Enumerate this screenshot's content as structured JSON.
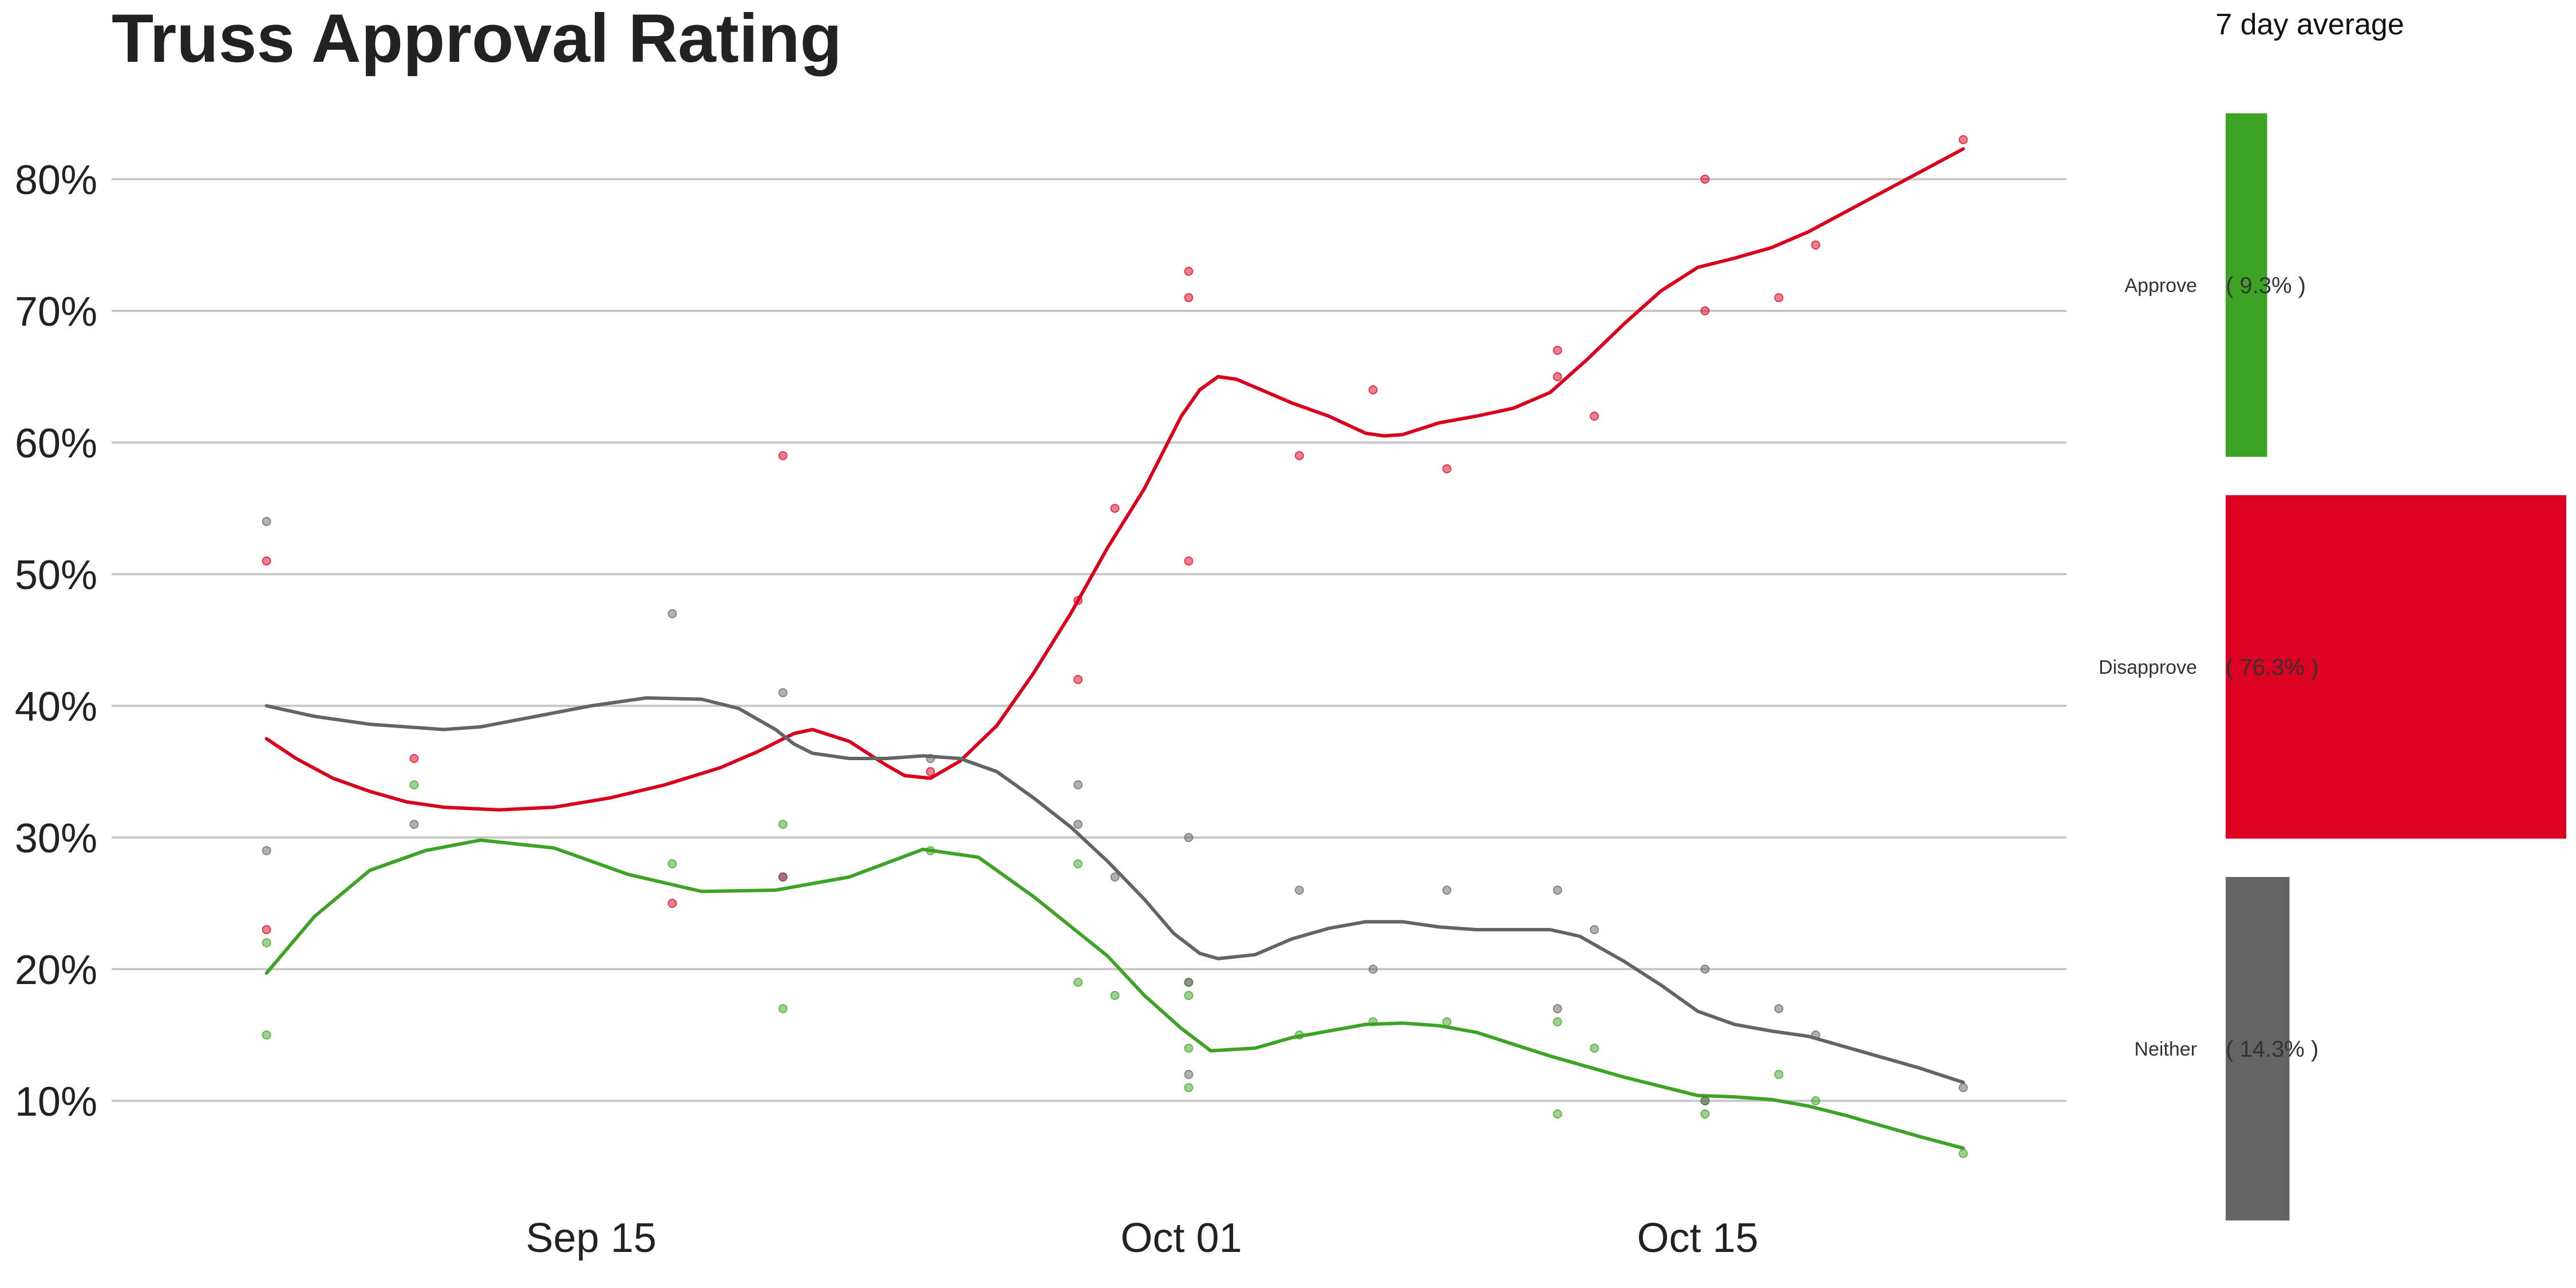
{
  "chart_data": {
    "type": "scatter",
    "title": "Truss Approval Rating",
    "ylim": [
      3,
      87
    ],
    "y_ticks": [
      10,
      20,
      30,
      40,
      50,
      60,
      70,
      80
    ],
    "y_tick_labels": [
      "10%",
      "20%",
      "30%",
      "40%",
      "50%",
      "60%",
      "70%",
      "80%"
    ],
    "x_ticks": [
      14,
      30,
      44
    ],
    "x_tick_labels": [
      "Sep 15",
      "Oct 01",
      "Oct 15"
    ],
    "xlim": [
      1,
      54
    ],
    "grid": "horizontal",
    "series": [
      {
        "name": "Approve",
        "color": "#3ca324",
        "points": [
          [
            5.2,
            22
          ],
          [
            5.2,
            15
          ],
          [
            9.2,
            34
          ],
          [
            16.2,
            28
          ],
          [
            19.2,
            31
          ],
          [
            19.2,
            17
          ],
          [
            23.2,
            29
          ],
          [
            27.2,
            28
          ],
          [
            27.2,
            19
          ],
          [
            28.2,
            18
          ],
          [
            30.2,
            19
          ],
          [
            30.2,
            18
          ],
          [
            30.2,
            14
          ],
          [
            30.2,
            11
          ],
          [
            33.2,
            15
          ],
          [
            35.2,
            16
          ],
          [
            37.2,
            16
          ],
          [
            40.2,
            16
          ],
          [
            40.2,
            9
          ],
          [
            41.2,
            14
          ],
          [
            44.2,
            10
          ],
          [
            44.2,
            9
          ],
          [
            46.2,
            12
          ],
          [
            47.2,
            10
          ],
          [
            51.2,
            6
          ]
        ],
        "trend": [
          [
            5.2,
            19.7
          ],
          [
            6.5,
            24
          ],
          [
            8,
            27.5
          ],
          [
            9.5,
            29
          ],
          [
            11,
            29.8
          ],
          [
            13,
            29.2
          ],
          [
            15,
            27.2
          ],
          [
            17,
            25.9
          ],
          [
            19,
            26
          ],
          [
            21,
            27
          ],
          [
            23,
            29.1
          ],
          [
            24.5,
            28.5
          ],
          [
            26,
            25.5
          ],
          [
            28,
            21
          ],
          [
            29,
            18
          ],
          [
            30,
            15.5
          ],
          [
            30.8,
            13.8
          ],
          [
            32,
            14
          ],
          [
            33,
            14.8
          ],
          [
            34,
            15.3
          ],
          [
            35,
            15.8
          ],
          [
            36,
            15.9
          ],
          [
            37,
            15.7
          ],
          [
            38,
            15.2
          ],
          [
            39,
            14.3
          ],
          [
            40,
            13.4
          ],
          [
            41,
            12.6
          ],
          [
            42,
            11.8
          ],
          [
            43,
            11.1
          ],
          [
            44,
            10.4
          ],
          [
            45,
            10.3
          ],
          [
            46,
            10.1
          ],
          [
            47,
            9.6
          ],
          [
            48,
            8.9
          ],
          [
            49,
            8.1
          ],
          [
            50,
            7.3
          ],
          [
            51.2,
            6.4
          ]
        ]
      },
      {
        "name": "Disapprove",
        "color": "#d9001c",
        "points": [
          [
            5.2,
            51
          ],
          [
            5.2,
            23
          ],
          [
            9.2,
            36
          ],
          [
            16.2,
            25
          ],
          [
            19.2,
            59
          ],
          [
            19.2,
            27
          ],
          [
            23.2,
            35
          ],
          [
            27.2,
            48
          ],
          [
            27.2,
            42
          ],
          [
            28.2,
            55
          ],
          [
            30.2,
            73
          ],
          [
            30.2,
            71
          ],
          [
            30.2,
            51
          ],
          [
            33.2,
            59
          ],
          [
            35.2,
            64
          ],
          [
            37.2,
            58
          ],
          [
            40.2,
            67
          ],
          [
            40.2,
            65
          ],
          [
            41.2,
            62
          ],
          [
            44.2,
            80
          ],
          [
            44.2,
            70
          ],
          [
            46.2,
            71
          ],
          [
            47.2,
            75
          ],
          [
            51.2,
            83
          ]
        ],
        "trend": [
          [
            5.2,
            37.5
          ],
          [
            6,
            36
          ],
          [
            7,
            34.5
          ],
          [
            8,
            33.5
          ],
          [
            9,
            32.7
          ],
          [
            10,
            32.3
          ],
          [
            11.5,
            32.1
          ],
          [
            13,
            32.3
          ],
          [
            14.5,
            33
          ],
          [
            16,
            34
          ],
          [
            17.5,
            35.3
          ],
          [
            18.5,
            36.5
          ],
          [
            19.5,
            37.9
          ],
          [
            20,
            38.2
          ],
          [
            21,
            37.3
          ],
          [
            22,
            35.5
          ],
          [
            22.5,
            34.7
          ],
          [
            23.2,
            34.5
          ],
          [
            24,
            35.8
          ],
          [
            25,
            38.5
          ],
          [
            26,
            42.5
          ],
          [
            27,
            47
          ],
          [
            28,
            52
          ],
          [
            29,
            56.5
          ],
          [
            30,
            62
          ],
          [
            30.5,
            64
          ],
          [
            31,
            65
          ],
          [
            31.5,
            64.8
          ],
          [
            32,
            64.2
          ],
          [
            33,
            63
          ],
          [
            34,
            62
          ],
          [
            35,
            60.7
          ],
          [
            35.5,
            60.5
          ],
          [
            36,
            60.6
          ],
          [
            37,
            61.5
          ],
          [
            38,
            62
          ],
          [
            39,
            62.6
          ],
          [
            40,
            63.8
          ],
          [
            41,
            66.3
          ],
          [
            42,
            69
          ],
          [
            43,
            71.5
          ],
          [
            43.5,
            72.4
          ],
          [
            44,
            73.3
          ],
          [
            45,
            74
          ],
          [
            46,
            74.8
          ],
          [
            47,
            76
          ],
          [
            48,
            77.5
          ],
          [
            49,
            79
          ],
          [
            50,
            80.5
          ],
          [
            51.2,
            82.3
          ]
        ]
      },
      {
        "name": "Neither",
        "color": "#646464",
        "points": [
          [
            5.2,
            54
          ],
          [
            5.2,
            29
          ],
          [
            9.2,
            31
          ],
          [
            16.2,
            47
          ],
          [
            19.2,
            41
          ],
          [
            19.2,
            27
          ],
          [
            23.2,
            36
          ],
          [
            27.2,
            34
          ],
          [
            27.2,
            31
          ],
          [
            28.2,
            27
          ],
          [
            30.2,
            30
          ],
          [
            30.2,
            19
          ],
          [
            30.2,
            12
          ],
          [
            33.2,
            26
          ],
          [
            35.2,
            20
          ],
          [
            37.2,
            26
          ],
          [
            40.2,
            26
          ],
          [
            40.2,
            17
          ],
          [
            41.2,
            23
          ],
          [
            44.2,
            20
          ],
          [
            44.2,
            10
          ],
          [
            46.2,
            17
          ],
          [
            47.2,
            15
          ],
          [
            51.2,
            11
          ]
        ],
        "trend": [
          [
            5.2,
            40
          ],
          [
            6.5,
            39.2
          ],
          [
            8,
            38.6
          ],
          [
            10,
            38.2
          ],
          [
            11,
            38.4
          ],
          [
            12.5,
            39.2
          ],
          [
            14,
            40
          ],
          [
            15.5,
            40.6
          ],
          [
            17,
            40.5
          ],
          [
            18,
            39.8
          ],
          [
            19,
            38.2
          ],
          [
            19.5,
            37.1
          ],
          [
            20,
            36.4
          ],
          [
            21,
            36
          ],
          [
            22,
            36
          ],
          [
            23,
            36.2
          ],
          [
            24,
            36
          ],
          [
            25,
            35
          ],
          [
            26,
            33
          ],
          [
            27,
            30.8
          ],
          [
            28,
            28.2
          ],
          [
            29,
            25.3
          ],
          [
            29.8,
            22.7
          ],
          [
            30.5,
            21.2
          ],
          [
            31,
            20.8
          ],
          [
            32,
            21.1
          ],
          [
            33,
            22.3
          ],
          [
            34,
            23.1
          ],
          [
            35,
            23.6
          ],
          [
            36,
            23.6
          ],
          [
            37,
            23.2
          ],
          [
            38,
            23
          ],
          [
            39,
            23
          ],
          [
            40,
            23
          ],
          [
            40.8,
            22.5
          ],
          [
            42,
            20.6
          ],
          [
            43,
            18.8
          ],
          [
            44,
            16.8
          ],
          [
            45,
            15.8
          ],
          [
            46,
            15.3
          ],
          [
            47,
            14.9
          ],
          [
            48,
            14.1
          ],
          [
            49,
            13.3
          ],
          [
            50,
            12.5
          ],
          [
            51.2,
            11.4
          ]
        ]
      }
    ]
  },
  "side_panel": {
    "title": "7 day average",
    "bars": [
      {
        "label": "Approve",
        "value": 9.3,
        "value_text": "( 9.3% )",
        "color": "#3ca324"
      },
      {
        "label": "Disapprove",
        "value": 76.3,
        "value_text": "( 76.3% )",
        "color": "#dc0022"
      },
      {
        "label": "Neither",
        "value": 14.3,
        "value_text": "( 14.3% )",
        "color": "#646464"
      }
    ]
  }
}
